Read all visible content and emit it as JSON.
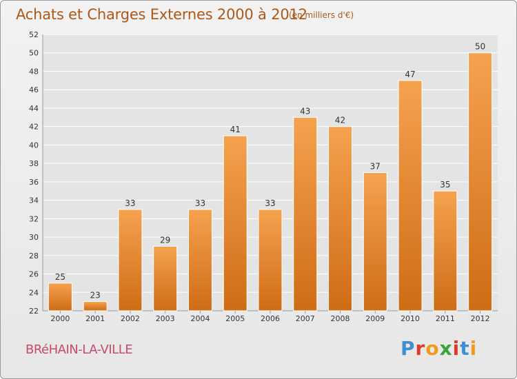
{
  "header": {
    "title": "Achats et Charges Externes 2000 à 2012",
    "subtitle": "(en milliers d'€)"
  },
  "footer": {
    "commune": "BRéHAIN-LA-VILLE",
    "brand": "Proxiti"
  },
  "colors": {
    "bar_top": "#f5a24f",
    "bar_bottom": "#cf6c16",
    "title": "#ad5818",
    "commune": "#c84a6a",
    "grid": "#ffffff"
  },
  "chart_data": {
    "type": "bar",
    "title": "Achats et Charges Externes 2000 à 2012",
    "subtitle": "(en milliers d'€)",
    "categories": [
      "2000",
      "2001",
      "2002",
      "2003",
      "2004",
      "2005",
      "2006",
      "2007",
      "2008",
      "2009",
      "2010",
      "2011",
      "2012"
    ],
    "values": [
      25,
      23,
      33,
      29,
      33,
      41,
      33,
      43,
      42,
      37,
      47,
      35,
      50
    ],
    "ylim": [
      22,
      52
    ],
    "yticks": [
      22,
      24,
      26,
      28,
      30,
      32,
      34,
      36,
      38,
      40,
      42,
      44,
      46,
      48,
      50,
      52
    ],
    "grid": true,
    "data_labels": true
  }
}
